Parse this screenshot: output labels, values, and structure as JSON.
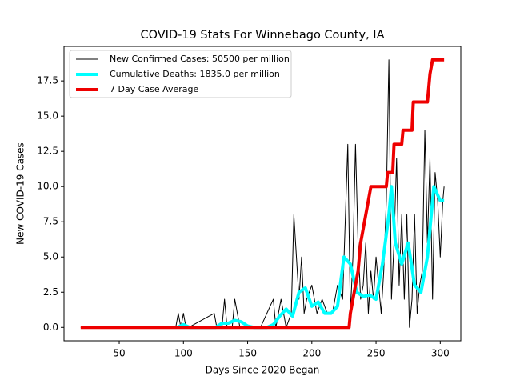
{
  "chart_data": {
    "type": "line",
    "title": "COVID-19 Stats For Winnebago County, IA",
    "xlabel": "Days Since 2020 Began",
    "ylabel": "New COVID-19 Cases",
    "xlim": [
      7,
      316
    ],
    "ylim": [
      -0.95,
      19.95
    ],
    "xticks": [
      50,
      100,
      150,
      200,
      250,
      300
    ],
    "yticks": [
      {
        "value": 0,
        "label": "0.0"
      },
      2.5,
      {
        "value": 5,
        "label": "5.0"
      },
      7.5,
      {
        "value": 10,
        "label": "10.0"
      },
      12.5,
      {
        "value": 15,
        "label": "15.0"
      },
      17.5
    ],
    "legend": "upper left",
    "series": [
      {
        "name": "New Confirmed Cases: 50500 per million",
        "color": "#000000",
        "linewidth": 1,
        "x": [
          20,
          94,
          96,
          98,
          100,
          102,
          104,
          124,
          126,
          130,
          132,
          134,
          138,
          140,
          144,
          150,
          160,
          170,
          172,
          176,
          180,
          184,
          186,
          190,
          192,
          194,
          196,
          200,
          204,
          208,
          212,
          216,
          220,
          224,
          228,
          230,
          232,
          234,
          236,
          238,
          240,
          242,
          244,
          246,
          248,
          250,
          252,
          254,
          256,
          258,
          260,
          262,
          264,
          266,
          268,
          270,
          272,
          274,
          276,
          278,
          280,
          282,
          284,
          286,
          288,
          290,
          292,
          294,
          296,
          298,
          300,
          302,
          303
        ],
        "values": [
          0,
          0,
          1,
          0,
          1,
          0,
          0,
          1,
          0,
          0,
          2,
          0,
          0,
          2,
          0,
          0,
          0,
          2,
          0,
          2,
          0,
          1,
          8,
          2,
          5,
          1,
          2,
          3,
          1,
          2,
          1,
          1,
          3,
          2,
          13,
          1,
          5,
          13,
          6,
          2,
          3,
          6,
          1,
          4,
          2,
          5,
          3,
          1,
          4,
          9,
          19,
          2,
          6,
          12,
          3,
          8,
          2,
          8,
          0,
          2,
          8,
          1,
          3,
          4,
          14,
          6,
          12,
          2,
          11,
          9,
          5,
          9,
          10
        ]
      },
      {
        "name": "Cumulative Deaths: 1835.0 per million",
        "color": "#00ffff",
        "linewidth": 4,
        "x": [
          95,
          100,
          105,
          125,
          130,
          135,
          140,
          145,
          150,
          155,
          165,
          170,
          175,
          180,
          185,
          190,
          195,
          200,
          205,
          210,
          215,
          220,
          225,
          230,
          235,
          240,
          245,
          250,
          255,
          260,
          262,
          265,
          270,
          275,
          280,
          285,
          290,
          295,
          300,
          303
        ],
        "values": [
          0,
          0.2,
          0,
          0,
          0.3,
          0.3,
          0.5,
          0.4,
          0.1,
          0,
          0,
          0.2,
          0.8,
          1.3,
          0.8,
          2.5,
          2.8,
          1.5,
          1.8,
          1.0,
          1.0,
          1.5,
          5,
          4.5,
          2.5,
          2.2,
          2.3,
          2.0,
          4.5,
          8,
          10,
          6,
          4.5,
          6,
          3,
          2.5,
          5,
          10,
          9,
          9
        ]
      },
      {
        "name": "7 Day Case Average",
        "color": "#ee0000",
        "linewidth": 4,
        "x": [
          20,
          229,
          230,
          232,
          236,
          238,
          240,
          242,
          244,
          246,
          258,
          259,
          263,
          264,
          270,
          271,
          278,
          279,
          290,
          291,
          292,
          294,
          303
        ],
        "values": [
          0,
          0,
          1,
          2,
          4,
          6,
          7,
          8,
          9,
          10,
          10,
          11,
          11,
          13,
          13,
          14,
          14,
          16,
          16,
          17,
          18,
          19,
          19
        ]
      }
    ]
  }
}
